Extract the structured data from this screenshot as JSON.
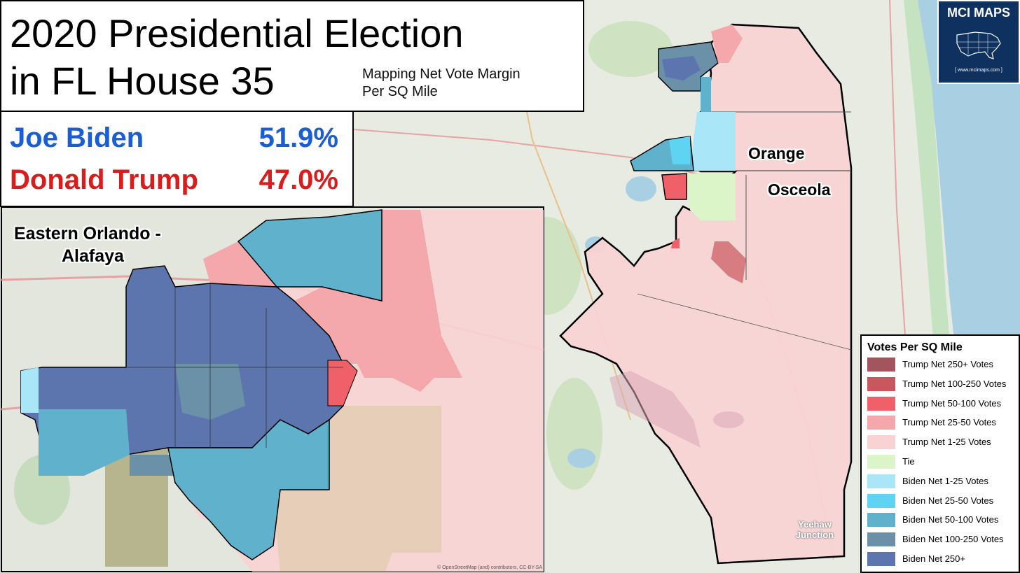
{
  "title": {
    "line1": "2020 Presidential Election",
    "line2": "in FL House 35",
    "subtitle_line1": "Mapping Net Vote Margin",
    "subtitle_line2": "Per SQ Mile"
  },
  "results": [
    {
      "candidate": "Joe Biden",
      "percent": "51.9%",
      "color": "#1a5ed4"
    },
    {
      "candidate": "Donald Trump",
      "percent": "47.0%",
      "color": "#d91c1c"
    }
  ],
  "inset": {
    "label_line1": "Eastern Orlando -",
    "label_line2": "Alafaya"
  },
  "counties": {
    "orange": "Orange",
    "osceola": "Osceola"
  },
  "places": {
    "yeehaw": "Yeehaw Junction"
  },
  "logo": {
    "text": "MCI MAPS",
    "url": "[ www.mcimaps.com ]"
  },
  "legend": {
    "title": "Votes Per SQ Mile",
    "items": [
      {
        "label": "Trump Net 250+ Votes",
        "color": "#a3555e"
      },
      {
        "label": "Trump Net 100-250 Votes",
        "color": "#c9575e"
      },
      {
        "label": "Trump Net 50-100 Votes",
        "color": "#f06069"
      },
      {
        "label": "Trump Net 25-50 Votes",
        "color": "#f5a8ab"
      },
      {
        "label": "Trump Net 1-25 Votes",
        "color": "#f9d3d4"
      },
      {
        "label": "Tie",
        "color": "#dcf5c8"
      },
      {
        "label": "Biden Net 1-25 Votes",
        "color": "#a9e6f7"
      },
      {
        "label": "Biden Net 25-50 Votes",
        "color": "#5fd3f2"
      },
      {
        "label": "Biden Net 50-100 Votes",
        "color": "#5fb1cc"
      },
      {
        "label": "Biden Net 100-250 Votes",
        "color": "#6b91a8"
      },
      {
        "label": "Biden Net 250+",
        "color": "#5c75ae"
      }
    ]
  },
  "attribution": "© OpenStreetMap (and) contributors, CC-BY-SA"
}
